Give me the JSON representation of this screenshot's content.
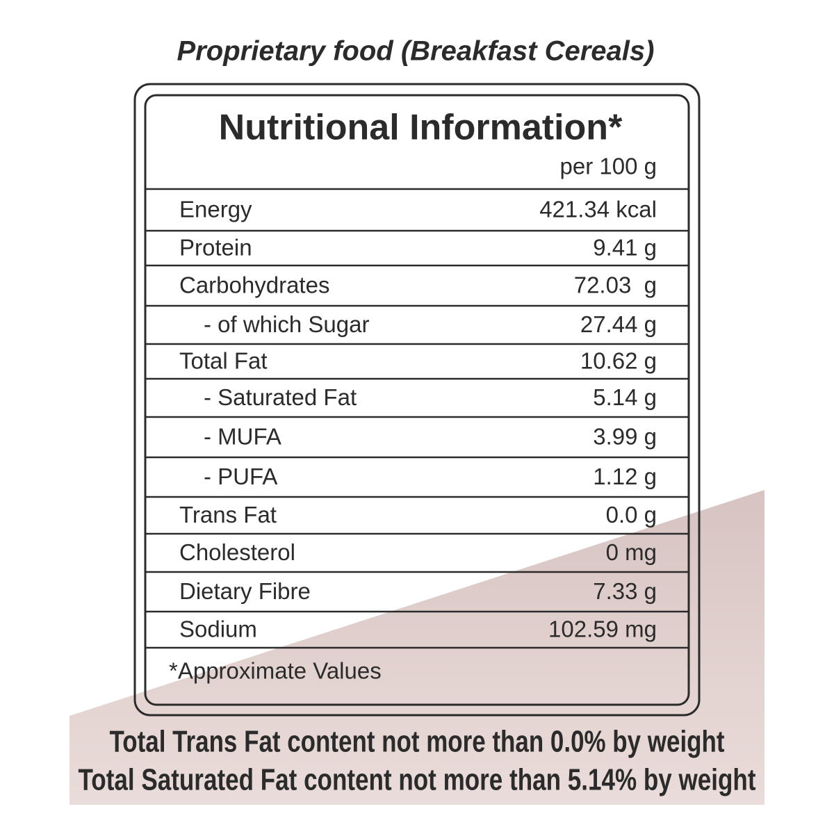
{
  "title": "Proprietary food (Breakfast Cereals)",
  "panel": {
    "heading": "Nutritional Information*",
    "per": "per 100 g",
    "rows": [
      [
        "Energy",
        "421.34 kcal"
      ],
      [
        "Protein",
        "9.41 g"
      ],
      [
        "Carbohydrates",
        "72.03  g"
      ],
      [
        "- of which Sugar",
        "27.44 g"
      ],
      [
        "Total Fat",
        "10.62 g"
      ],
      [
        "- Saturated Fat",
        "5.14 g"
      ],
      [
        "- MUFA",
        "3.99 g"
      ],
      [
        "- PUFA",
        "1.12 g"
      ],
      [
        "Trans Fat",
        "0.0 g"
      ],
      [
        "Cholesterol",
        "0 mg"
      ],
      [
        "Dietary Fibre",
        "7.33 g"
      ],
      [
        "Sodium",
        "102.59 mg"
      ]
    ],
    "footnote": "*Approximate Values"
  },
  "notes": [
    "Total Trans Fat content not more than 0.0% by weight",
    "Total Saturated Fat content not more than 5.14% by weight"
  ]
}
